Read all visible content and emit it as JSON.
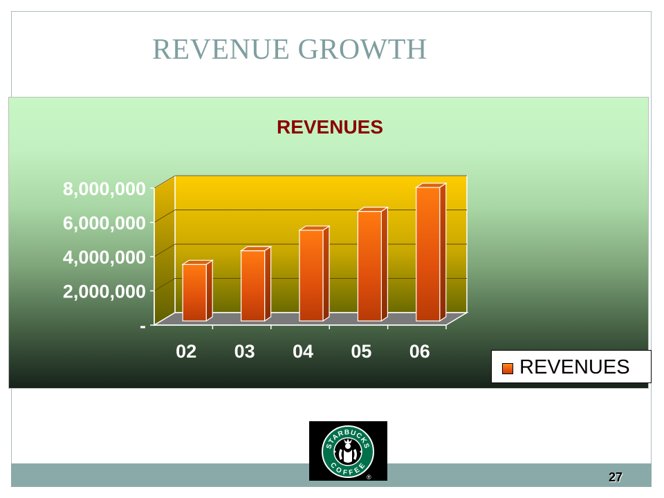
{
  "slide": {
    "title": "REVENUE GROWTH",
    "page_number": "27"
  },
  "logo": {
    "top_text": "STARBUCKS",
    "bottom_text": "COFFEE",
    "mark": "®",
    "colors": {
      "ring": "#00704a",
      "background": "#000000"
    }
  },
  "chart_data": {
    "type": "bar",
    "title": "REVENUES",
    "categories": [
      "02",
      "03",
      "04",
      "05",
      "06"
    ],
    "series": [
      {
        "name": "REVENUES",
        "values": [
          3300000,
          4100000,
          5300000,
          6400000,
          7800000
        ]
      }
    ],
    "ylim": [
      0,
      8000000
    ],
    "yticks": [
      0,
      2000000,
      4000000,
      6000000,
      8000000
    ],
    "ytick_labels": [
      "-",
      "2,000,000",
      "4,000,000",
      "6,000,000",
      "8,000,000"
    ],
    "grid": true,
    "legend": "right",
    "colors": {
      "bar": "#e8540f",
      "title": "#8b0000",
      "plot_wall_top": "#ffcc00",
      "plot_wall_bottom": "#6a6a00"
    }
  }
}
